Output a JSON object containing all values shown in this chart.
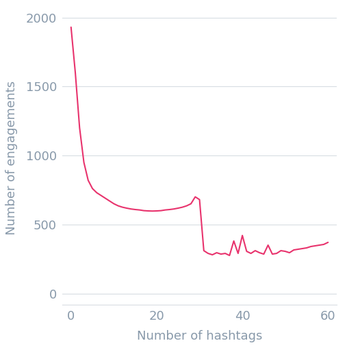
{
  "x": [
    0,
    1,
    2,
    3,
    4,
    5,
    6,
    7,
    8,
    9,
    10,
    11,
    12,
    13,
    14,
    15,
    16,
    17,
    18,
    19,
    20,
    21,
    22,
    23,
    24,
    25,
    26,
    27,
    28,
    29,
    30,
    31,
    32,
    33,
    34,
    35,
    36,
    37,
    38,
    39,
    40,
    41,
    42,
    43,
    44,
    45,
    46,
    47,
    48,
    49,
    50,
    51,
    52,
    53,
    54,
    55,
    56,
    57,
    58,
    59,
    60
  ],
  "y": [
    1930,
    1600,
    1200,
    950,
    820,
    760,
    730,
    710,
    690,
    670,
    650,
    635,
    625,
    618,
    612,
    608,
    605,
    600,
    598,
    597,
    598,
    600,
    605,
    608,
    612,
    618,
    625,
    635,
    650,
    700,
    680,
    310,
    290,
    280,
    295,
    285,
    290,
    275,
    380,
    290,
    420,
    305,
    290,
    310,
    295,
    285,
    350,
    285,
    290,
    310,
    305,
    295,
    315,
    320,
    325,
    330,
    340,
    345,
    350,
    355,
    370
  ],
  "line_color": "#e8336d",
  "xlabel": "Number of hashtags",
  "ylabel": "Number of engagements",
  "xlim": [
    -2,
    62
  ],
  "ylim": [
    -80,
    2050
  ],
  "xticks": [
    0,
    20,
    40,
    60
  ],
  "yticks": [
    0,
    500,
    1000,
    1500,
    2000
  ],
  "tick_label_color": "#8899aa",
  "axis_label_color": "#8899aa",
  "grid_color": "#d8dde3",
  "background_color": "#ffffff",
  "line_width": 1.5,
  "tick_fontsize": 13,
  "label_fontsize": 13
}
